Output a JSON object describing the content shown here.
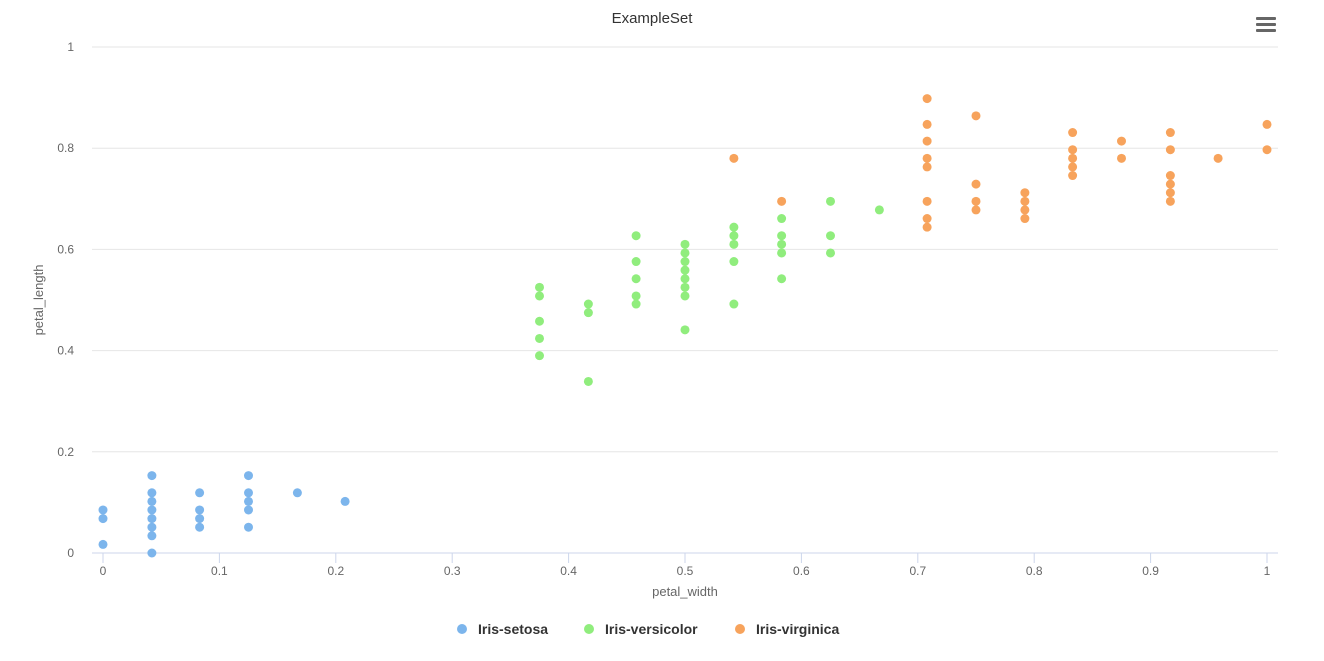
{
  "toolbar": {
    "menu_icon": "hamburger-menu-icon"
  },
  "chart_data": {
    "type": "scatter",
    "title": "ExampleSet",
    "xlabel": "petal_width",
    "ylabel": "petal_length",
    "xlim": [
      0,
      1
    ],
    "ylim": [
      0,
      1
    ],
    "x_ticks": [
      "0",
      "0.1",
      "0.2",
      "0.3",
      "0.4",
      "0.5",
      "0.6",
      "0.7",
      "0.8",
      "0.9",
      "1"
    ],
    "y_ticks": [
      "0",
      "0.2",
      "0.4",
      "0.6",
      "0.8",
      "1"
    ],
    "grid": "horizontal",
    "legend_position": "bottom-center",
    "series": [
      {
        "name": "Iris-setosa",
        "color": "#7cb5ec",
        "points": [
          [
            0,
            0.085
          ],
          [
            0,
            0.068
          ],
          [
            0,
            0.017
          ],
          [
            0.042,
            0.153
          ],
          [
            0.042,
            0.119
          ],
          [
            0.042,
            0.102
          ],
          [
            0.042,
            0.085
          ],
          [
            0.042,
            0.068
          ],
          [
            0.042,
            0.051
          ],
          [
            0.042,
            0.034
          ],
          [
            0.042,
            0.0
          ],
          [
            0.083,
            0.119
          ],
          [
            0.083,
            0.085
          ],
          [
            0.083,
            0.068
          ],
          [
            0.083,
            0.051
          ],
          [
            0.125,
            0.153
          ],
          [
            0.125,
            0.119
          ],
          [
            0.125,
            0.102
          ],
          [
            0.125,
            0.085
          ],
          [
            0.125,
            0.051
          ],
          [
            0.167,
            0.119
          ],
          [
            0.208,
            0.102
          ]
        ]
      },
      {
        "name": "Iris-versicolor",
        "color": "#90ed7d",
        "points": [
          [
            0.375,
            0.525
          ],
          [
            0.375,
            0.508
          ],
          [
            0.375,
            0.458
          ],
          [
            0.375,
            0.424
          ],
          [
            0.375,
            0.39
          ],
          [
            0.417,
            0.492
          ],
          [
            0.417,
            0.475
          ],
          [
            0.417,
            0.339
          ],
          [
            0.458,
            0.627
          ],
          [
            0.458,
            0.576
          ],
          [
            0.458,
            0.542
          ],
          [
            0.458,
            0.508
          ],
          [
            0.458,
            0.492
          ],
          [
            0.5,
            0.61
          ],
          [
            0.5,
            0.593
          ],
          [
            0.5,
            0.576
          ],
          [
            0.5,
            0.559
          ],
          [
            0.5,
            0.542
          ],
          [
            0.5,
            0.525
          ],
          [
            0.5,
            0.508
          ],
          [
            0.5,
            0.441
          ],
          [
            0.542,
            0.644
          ],
          [
            0.542,
            0.627
          ],
          [
            0.542,
            0.61
          ],
          [
            0.542,
            0.576
          ],
          [
            0.542,
            0.492
          ],
          [
            0.583,
            0.661
          ],
          [
            0.583,
            0.627
          ],
          [
            0.583,
            0.61
          ],
          [
            0.583,
            0.593
          ],
          [
            0.583,
            0.542
          ],
          [
            0.625,
            0.695
          ],
          [
            0.625,
            0.627
          ],
          [
            0.625,
            0.593
          ],
          [
            0.667,
            0.678
          ]
        ]
      },
      {
        "name": "Iris-virginica",
        "color": "#f7a35c",
        "points": [
          [
            0.542,
            0.78
          ],
          [
            0.583,
            0.695
          ],
          [
            0.708,
            0.898
          ],
          [
            0.708,
            0.847
          ],
          [
            0.708,
            0.814
          ],
          [
            0.708,
            0.78
          ],
          [
            0.708,
            0.763
          ],
          [
            0.708,
            0.695
          ],
          [
            0.708,
            0.661
          ],
          [
            0.708,
            0.644
          ],
          [
            0.75,
            0.864
          ],
          [
            0.75,
            0.729
          ],
          [
            0.75,
            0.695
          ],
          [
            0.75,
            0.678
          ],
          [
            0.792,
            0.712
          ],
          [
            0.792,
            0.695
          ],
          [
            0.792,
            0.678
          ],
          [
            0.792,
            0.661
          ],
          [
            0.833,
            0.831
          ],
          [
            0.833,
            0.797
          ],
          [
            0.833,
            0.78
          ],
          [
            0.833,
            0.763
          ],
          [
            0.833,
            0.746
          ],
          [
            0.875,
            0.814
          ],
          [
            0.875,
            0.78
          ],
          [
            0.917,
            0.831
          ],
          [
            0.917,
            0.797
          ],
          [
            0.917,
            0.746
          ],
          [
            0.917,
            0.729
          ],
          [
            0.917,
            0.712
          ],
          [
            0.917,
            0.695
          ],
          [
            0.958,
            0.78
          ],
          [
            1.0,
            0.847
          ],
          [
            1.0,
            0.797
          ]
        ]
      }
    ]
  }
}
